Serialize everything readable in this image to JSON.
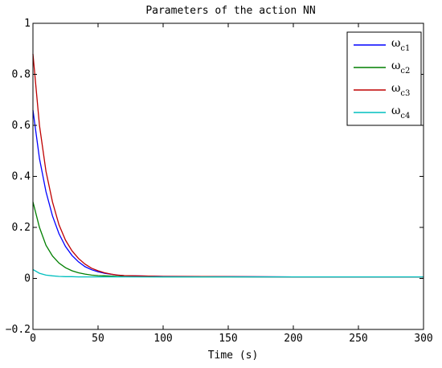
{
  "chart_data": {
    "type": "line",
    "title": "Parameters of the action NN",
    "xlabel": "Time (s)",
    "ylabel": "",
    "xlim": [
      0,
      300
    ],
    "ylim": [
      -0.2,
      1
    ],
    "xticks": [
      0,
      50,
      100,
      150,
      200,
      250,
      300
    ],
    "xtick_labels": [
      "0",
      "50",
      "100",
      "150",
      "200",
      "250",
      "300"
    ],
    "yticks": [
      -0.2,
      0,
      0.2,
      0.4,
      0.6,
      0.8,
      1
    ],
    "ytick_labels": [
      "−0.2",
      "0",
      "0.2",
      "0.4",
      "0.6",
      "0.8",
      "1"
    ],
    "grid": false,
    "legend_position": "top-right",
    "x": [
      0,
      5,
      10,
      15,
      20,
      25,
      30,
      35,
      40,
      45,
      50,
      55,
      60,
      65,
      70,
      100,
      150,
      200,
      250,
      300
    ],
    "series": [
      {
        "name": "ω",
        "sub": "c1",
        "color": "#0000ff",
        "values": [
          0.66,
          0.47,
          0.34,
          0.245,
          0.175,
          0.125,
          0.09,
          0.065,
          0.046,
          0.034,
          0.026,
          0.02,
          0.016,
          0.013,
          0.011,
          0.008,
          0.007,
          0.006,
          0.006,
          0.006
        ]
      },
      {
        "name": "ω",
        "sub": "c2",
        "color": "#007f00",
        "values": [
          0.3,
          0.2,
          0.13,
          0.088,
          0.06,
          0.042,
          0.03,
          0.022,
          0.017,
          0.013,
          0.011,
          0.01,
          0.009,
          0.008,
          0.007,
          0.006,
          0.006,
          0.006,
          0.006,
          0.006
        ]
      },
      {
        "name": "ω",
        "sub": "c3",
        "color": "#bf0000",
        "values": [
          0.88,
          0.6,
          0.42,
          0.3,
          0.21,
          0.15,
          0.108,
          0.078,
          0.056,
          0.04,
          0.03,
          0.022,
          0.017,
          0.013,
          0.011,
          0.008,
          0.007,
          0.006,
          0.006,
          0.006
        ]
      },
      {
        "name": "ω",
        "sub": "c4",
        "color": "#00bfbf",
        "values": [
          0.035,
          0.02,
          0.013,
          0.01,
          0.008,
          0.007,
          0.007,
          0.006,
          0.006,
          0.006,
          0.006,
          0.006,
          0.006,
          0.006,
          0.006,
          0.006,
          0.006,
          0.006,
          0.006,
          0.006
        ]
      }
    ]
  }
}
